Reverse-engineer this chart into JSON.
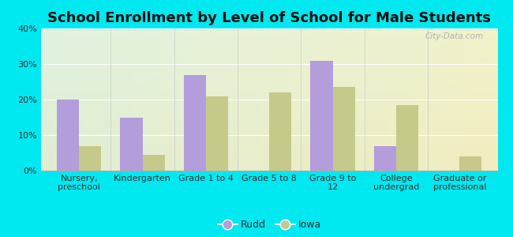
{
  "title": "School Enrollment by Level of School for Male Students",
  "categories": [
    "Nursery,\npreschool",
    "Kindergarten",
    "Grade 1 to 4",
    "Grade 5 to 8",
    "Grade 9 to\n12",
    "College\nundergrad",
    "Graduate or\nprofessional"
  ],
  "rudd_values": [
    20,
    15,
    27,
    0,
    31,
    7,
    0
  ],
  "iowa_values": [
    7,
    4.5,
    21,
    22,
    23.5,
    18.5,
    4
  ],
  "rudd_color": "#b39ddb",
  "iowa_color": "#c5c98a",
  "background_outer": "#00e8f0",
  "ylim": [
    0,
    40
  ],
  "yticks": [
    0,
    10,
    20,
    30,
    40
  ],
  "ytick_labels": [
    "0%",
    "10%",
    "20%",
    "30%",
    "40%"
  ],
  "legend_labels": [
    "Rudd",
    "Iowa"
  ],
  "bar_width": 0.35,
  "title_fontsize": 13,
  "tick_fontsize": 8,
  "legend_fontsize": 9
}
